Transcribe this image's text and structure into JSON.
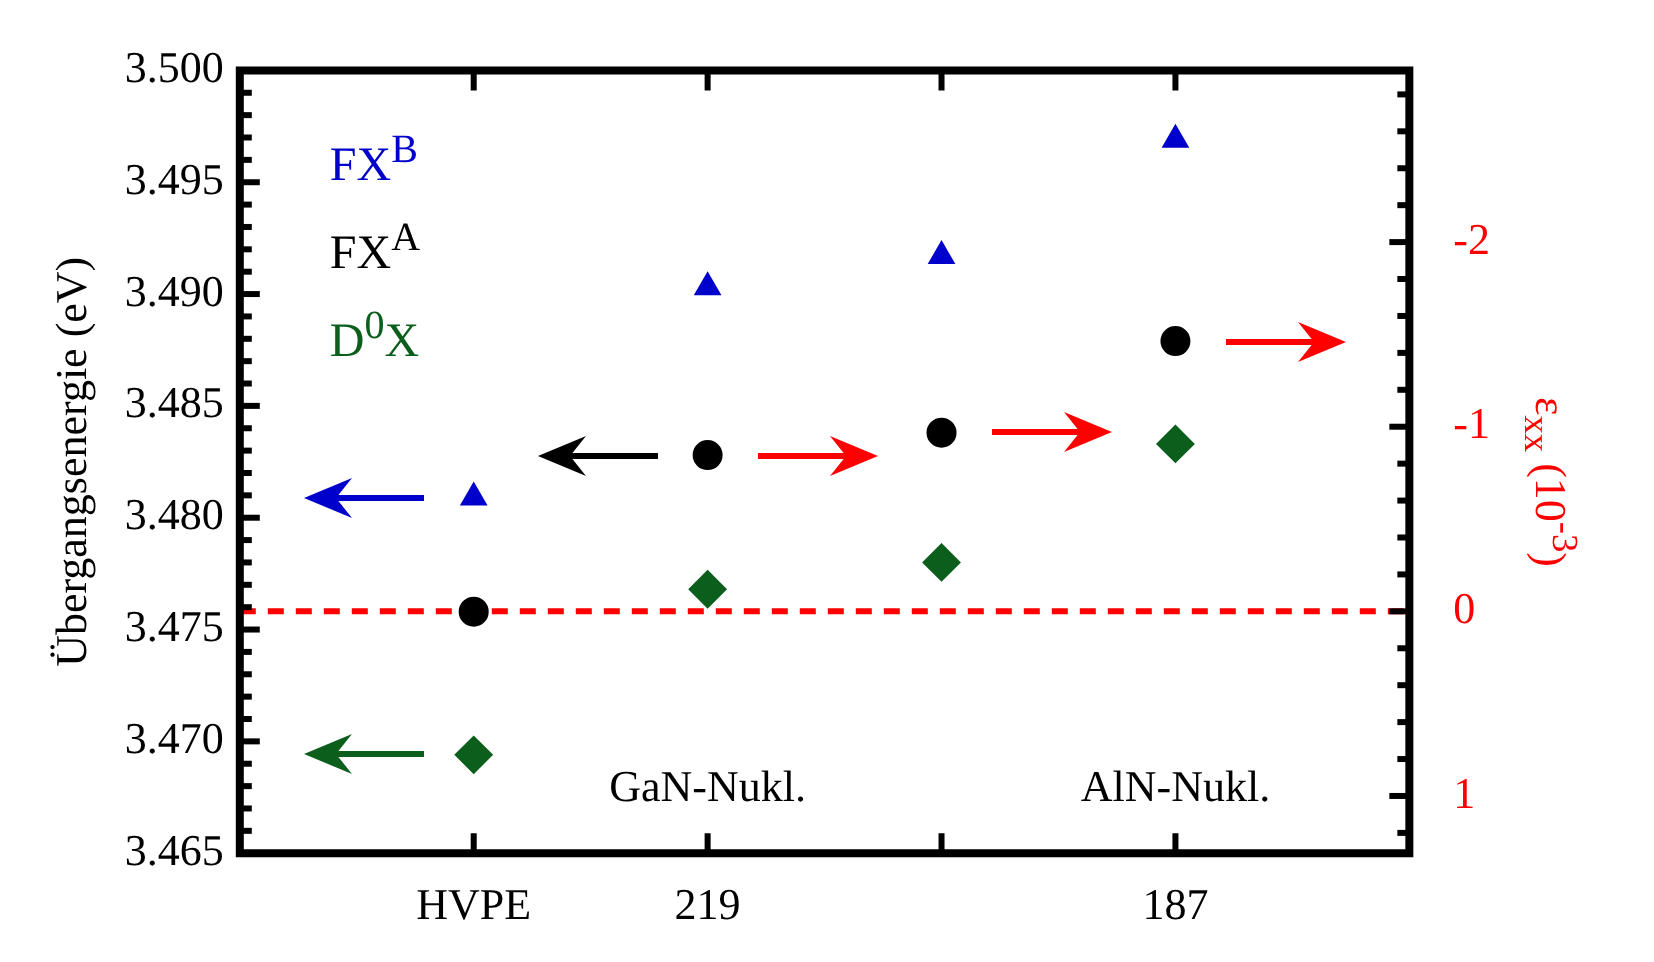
{
  "chart_data": {
    "type": "scatter",
    "categories": [
      "HVPE",
      "219",
      null,
      "187"
    ],
    "ylabel": "Übergangsenergie (eV)",
    "y2label": "ε$_{xx}$ (10$^{-3}$)",
    "series": [
      {
        "name": "FX$^{B}$",
        "color": "#0000cc",
        "marker": "triangle",
        "values": [
          3.4809,
          3.4903,
          3.4917,
          3.4969
        ]
      },
      {
        "name": "FX$^{A}$",
        "color": "#000000",
        "marker": "circle",
        "values": [
          3.4758,
          3.4828,
          3.4838,
          3.4879
        ]
      },
      {
        "name": "D$^{0}$X",
        "color": "#0b5e1c",
        "marker": "diamond",
        "values": [
          3.4694,
          3.4768,
          3.478,
          3.4833
        ]
      }
    ],
    "ylim": [
      3.465,
      3.5
    ],
    "yticks": [
      3.465,
      {
        "value": 3.466,
        "label": null
      },
      {
        "value": 3.467,
        "label": null
      },
      {
        "value": 3.468,
        "label": null
      },
      {
        "value": 3.469,
        "label": null
      },
      {
        "value": 3.47,
        "label": "3.470"
      },
      {
        "value": 3.471,
        "label": null
      },
      {
        "value": 3.472,
        "label": null
      },
      {
        "value": 3.473,
        "label": null
      },
      {
        "value": 3.474,
        "label": null
      },
      3.475,
      {
        "value": 3.476,
        "label": null
      },
      {
        "value": 3.477,
        "label": null
      },
      {
        "value": 3.478,
        "label": null
      },
      {
        "value": 3.479,
        "label": null
      },
      {
        "value": 3.48,
        "label": "3.480"
      },
      {
        "value": 3.481,
        "label": null
      },
      {
        "value": 3.482,
        "label": null
      },
      {
        "value": 3.483,
        "label": null
      },
      {
        "value": 3.484,
        "label": null
      },
      3.485,
      {
        "value": 3.486,
        "label": null
      },
      {
        "value": 3.487,
        "label": null
      },
      {
        "value": 3.488,
        "label": null
      },
      {
        "value": 3.489,
        "label": null
      },
      {
        "value": 3.49,
        "label": "3.490"
      },
      {
        "value": 3.491,
        "label": null
      },
      {
        "value": 3.492,
        "label": null
      },
      {
        "value": 3.493,
        "label": null
      },
      {
        "value": 3.494,
        "label": null
      },
      3.495,
      {
        "value": 3.496,
        "label": null
      },
      {
        "value": 3.497,
        "label": null
      },
      {
        "value": 3.498,
        "label": null
      },
      {
        "value": 3.499,
        "label": null
      },
      {
        "value": 3.5,
        "label": "3.500"
      }
    ],
    "y2lim": [
      1.31,
      -2.93
    ],
    "y2ticks": [
      {
        "value": 1.2,
        "label": null
      },
      1,
      {
        "value": 0.8,
        "label": null
      },
      {
        "value": 0.6,
        "label": null
      },
      {
        "value": 0.4,
        "label": null
      },
      {
        "value": 0.2,
        "label": null
      },
      0,
      {
        "value": -0.2,
        "label": null
      },
      {
        "value": -0.4,
        "label": null
      },
      {
        "value": -0.6,
        "label": null
      },
      {
        "value": -0.8,
        "label": null
      },
      -1,
      {
        "value": -1.2,
        "label": null
      },
      {
        "value": -1.4,
        "label": null
      },
      {
        "value": -1.6,
        "label": null
      },
      {
        "value": -1.8,
        "label": null
      },
      -2,
      {
        "value": -2.2,
        "label": null
      },
      {
        "value": -2.4,
        "label": null
      },
      {
        "value": -2.6,
        "label": null
      },
      {
        "value": -2.8,
        "label": null
      }
    ],
    "ref_lines": [
      {
        "axis": "y2",
        "value": 0,
        "color": "#ff0000",
        "line_style": "dashed"
      }
    ],
    "annotations": [
      "GaN-Nukl.",
      "AlN-Nukl."
    ],
    "legend": "top left",
    "grid": false
  }
}
